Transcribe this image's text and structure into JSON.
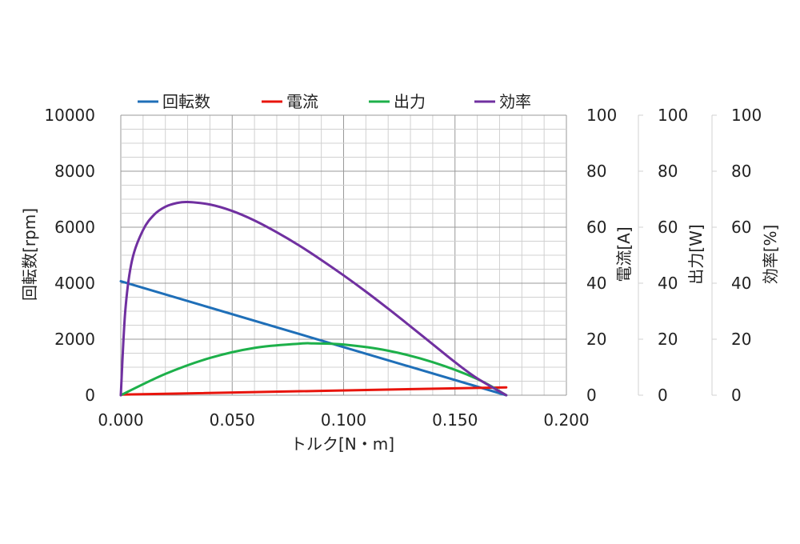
{
  "chart_data": {
    "type": "line",
    "title": "",
    "xlabel": "トルク[N・m]",
    "x_ticks": [
      "0.000",
      "0.050",
      "0.100",
      "0.150",
      "0.200"
    ],
    "xlim": [
      0,
      0.2
    ],
    "legend_position": "top",
    "grid": true,
    "axes": [
      {
        "id": "rpm",
        "label": "回転数[rpm]",
        "side": "left",
        "range": [
          0,
          10000
        ],
        "ticks": [
          "0",
          "2000",
          "4000",
          "6000",
          "8000",
          "10000"
        ]
      },
      {
        "id": "current",
        "label": "電流[A]",
        "side": "right",
        "range": [
          0,
          100
        ],
        "ticks": [
          "0",
          "20",
          "40",
          "60",
          "80",
          "100"
        ]
      },
      {
        "id": "power",
        "label": "出力[W]",
        "side": "right",
        "range": [
          0,
          100
        ],
        "ticks": [
          "0",
          "20",
          "40",
          "60",
          "80",
          "100"
        ]
      },
      {
        "id": "efficiency",
        "label": "効率[%]",
        "side": "right",
        "range": [
          0,
          100
        ],
        "ticks": [
          "0",
          "20",
          "40",
          "60",
          "80",
          "100"
        ]
      }
    ],
    "series": [
      {
        "name": "回転数",
        "axis": "rpm",
        "color": "#1F6FB8",
        "x": [
          0,
          0.173
        ],
        "y": [
          4070,
          0
        ]
      },
      {
        "name": "電流",
        "axis": "current",
        "color": "#E8140C",
        "x": [
          0,
          0.173
        ],
        "y": [
          0.2,
          2.8
        ]
      },
      {
        "name": "出力",
        "axis": "power",
        "color": "#1DB04A",
        "x": [
          0,
          0.02,
          0.04,
          0.06,
          0.08,
          0.0865,
          0.1,
          0.12,
          0.14,
          0.16,
          0.173
        ],
        "y": [
          0,
          7.6,
          13.3,
          16.9,
          18.4,
          18.5,
          18.1,
          15.9,
          11.8,
          5.8,
          0
        ]
      },
      {
        "name": "効率",
        "axis": "efficiency",
        "color": "#7030A0",
        "x": [
          0,
          0.002,
          0.005,
          0.01,
          0.015,
          0.02,
          0.025,
          0.03,
          0.04,
          0.05,
          0.06,
          0.07,
          0.08,
          0.09,
          0.1,
          0.11,
          0.12,
          0.13,
          0.14,
          0.15,
          0.16,
          0.173
        ],
        "y": [
          0,
          30,
          48,
          59,
          64.5,
          67.3,
          68.6,
          69,
          68.1,
          65.8,
          62.4,
          58.2,
          53.5,
          48.3,
          42.8,
          37,
          30.9,
          24.6,
          18.2,
          11.8,
          6,
          0
        ]
      }
    ]
  }
}
